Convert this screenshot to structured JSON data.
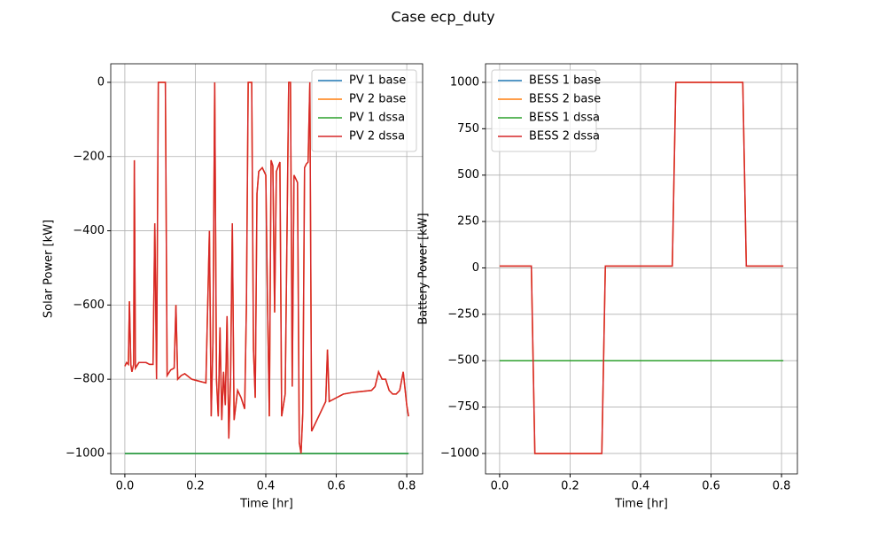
{
  "title": "Case ecp_duty",
  "chart_data": [
    {
      "type": "line",
      "legend": "upper right",
      "grid": true,
      "xlabel": "Time [hr]",
      "ylabel": "Solar Power [kW]",
      "xlim": [
        -0.04,
        0.845
      ],
      "ylim": [
        -1055,
        50
      ],
      "xticks": [
        {
          "value": 0,
          "label": "0.0"
        },
        {
          "value": 0.2,
          "label": "0.2"
        },
        {
          "value": 0.4,
          "label": "0.4"
        },
        {
          "value": 0.6,
          "label": "0.6"
        },
        {
          "value": 0.8,
          "label": "0.8"
        }
      ],
      "yticks": [
        {
          "value": -1000,
          "label": "−1000"
        },
        {
          "value": -800,
          "label": "−800"
        },
        {
          "value": -600,
          "label": "−600"
        },
        {
          "value": -400,
          "label": "−400"
        },
        {
          "value": -200,
          "label": "−200"
        },
        0
      ],
      "series": [
        {
          "name": "PV 1 base",
          "color": "#1f77b4",
          "x": [
            0,
            0.805
          ],
          "values": [
            -1000,
            -1000
          ]
        },
        {
          "name": "PV 2 base",
          "color": "#ff7f0e",
          "x": [
            0,
            0.005,
            0.01,
            0.013,
            0.017,
            0.02,
            0.025,
            0.027,
            0.03,
            0.04,
            0.06,
            0.07,
            0.08,
            0.085,
            0.09,
            0.095,
            0.115,
            0.12,
            0.13,
            0.14,
            0.145,
            0.15,
            0.16,
            0.17,
            0.19,
            0.21,
            0.23,
            0.24,
            0.245,
            0.25,
            0.255,
            0.26,
            0.265,
            0.27,
            0.275,
            0.28,
            0.285,
            0.29,
            0.295,
            0.3,
            0.305,
            0.31,
            0.32,
            0.33,
            0.34,
            0.345,
            0.35,
            0.36,
            0.365,
            0.37,
            0.375,
            0.38,
            0.39,
            0.4,
            0.405,
            0.41,
            0.415,
            0.42,
            0.425,
            0.43,
            0.44,
            0.445,
            0.455,
            0.465,
            0.47,
            0.475,
            0.48,
            0.49,
            0.495,
            0.5,
            0.505,
            0.51,
            0.515,
            0.52,
            0.525,
            0.53,
            0.54,
            0.55,
            0.56,
            0.57,
            0.575,
            0.58,
            0.6,
            0.62,
            0.65,
            0.7,
            0.71,
            0.72,
            0.73,
            0.74,
            0.75,
            0.76,
            0.77,
            0.78,
            0.79,
            0.8,
            0.805
          ],
          "values": [
            -765,
            -755,
            -760,
            -590,
            -760,
            -780,
            -760,
            -210,
            -770,
            -755,
            -755,
            -760,
            -760,
            -380,
            -800,
            0,
            0,
            -790,
            -775,
            -770,
            -600,
            -800,
            -790,
            -785,
            -800,
            -805,
            -810,
            -400,
            -900,
            -700,
            0,
            -800,
            -900,
            -660,
            -910,
            -780,
            -870,
            -630,
            -960,
            -800,
            -380,
            -910,
            -830,
            -850,
            -880,
            -600,
            0,
            0,
            -720,
            -850,
            -300,
            -240,
            -230,
            -250,
            -600,
            -900,
            -210,
            -225,
            -620,
            -240,
            -215,
            -900,
            -840,
            0,
            0,
            -820,
            -250,
            -270,
            -970,
            -1000,
            -890,
            -230,
            -220,
            -215,
            0,
            -940,
            -920,
            -900,
            -880,
            -860,
            -720,
            -860,
            -850,
            -840,
            -835,
            -830,
            -820,
            -780,
            -800,
            -800,
            -830,
            -840,
            -840,
            -830,
            -780,
            -870,
            -900
          ]
        },
        {
          "name": "PV 1 dssa",
          "color": "#2ca02c",
          "x": [
            0,
            0.805
          ],
          "values": [
            -1000,
            -1000
          ]
        },
        {
          "name": "PV 2 dssa",
          "color": "#d62728",
          "x": [
            0,
            0.005,
            0.01,
            0.013,
            0.017,
            0.02,
            0.025,
            0.027,
            0.03,
            0.04,
            0.06,
            0.07,
            0.08,
            0.085,
            0.09,
            0.095,
            0.115,
            0.12,
            0.13,
            0.14,
            0.145,
            0.15,
            0.16,
            0.17,
            0.19,
            0.21,
            0.23,
            0.24,
            0.245,
            0.25,
            0.255,
            0.26,
            0.265,
            0.27,
            0.275,
            0.28,
            0.285,
            0.29,
            0.295,
            0.3,
            0.305,
            0.31,
            0.32,
            0.33,
            0.34,
            0.345,
            0.35,
            0.36,
            0.365,
            0.37,
            0.375,
            0.38,
            0.39,
            0.4,
            0.405,
            0.41,
            0.415,
            0.42,
            0.425,
            0.43,
            0.44,
            0.445,
            0.455,
            0.465,
            0.47,
            0.475,
            0.48,
            0.49,
            0.495,
            0.5,
            0.505,
            0.51,
            0.515,
            0.52,
            0.525,
            0.53,
            0.54,
            0.55,
            0.56,
            0.57,
            0.575,
            0.58,
            0.6,
            0.62,
            0.65,
            0.7,
            0.71,
            0.72,
            0.73,
            0.74,
            0.75,
            0.76,
            0.77,
            0.78,
            0.79,
            0.8,
            0.805
          ],
          "values": [
            -765,
            -755,
            -760,
            -590,
            -760,
            -780,
            -760,
            -210,
            -770,
            -755,
            -755,
            -760,
            -760,
            -380,
            -800,
            0,
            0,
            -790,
            -775,
            -770,
            -600,
            -800,
            -790,
            -785,
            -800,
            -805,
            -810,
            -400,
            -900,
            -700,
            0,
            -800,
            -900,
            -660,
            -910,
            -780,
            -870,
            -630,
            -960,
            -800,
            -380,
            -910,
            -830,
            -850,
            -880,
            -600,
            0,
            0,
            -720,
            -850,
            -300,
            -240,
            -230,
            -250,
            -600,
            -900,
            -210,
            -225,
            -620,
            -240,
            -215,
            -900,
            -840,
            0,
            0,
            -820,
            -250,
            -270,
            -970,
            -1000,
            -890,
            -230,
            -220,
            -215,
            0,
            -940,
            -920,
            -900,
            -880,
            -860,
            -720,
            -860,
            -850,
            -840,
            -835,
            -830,
            -820,
            -780,
            -800,
            -800,
            -830,
            -840,
            -840,
            -830,
            -780,
            -870,
            -900
          ]
        }
      ]
    },
    {
      "type": "line",
      "legend": "upper left",
      "grid": true,
      "xlabel": "Time [hr]",
      "ylabel": "Battery Power [kW]",
      "xlim": [
        -0.04,
        0.845
      ],
      "ylim": [
        -1110,
        1100
      ],
      "xticks": [
        {
          "value": 0,
          "label": "0.0"
        },
        {
          "value": 0.2,
          "label": "0.2"
        },
        {
          "value": 0.4,
          "label": "0.4"
        },
        {
          "value": 0.6,
          "label": "0.6"
        },
        {
          "value": 0.8,
          "label": "0.8"
        }
      ],
      "yticks": [
        {
          "value": -1000,
          "label": "−1000"
        },
        {
          "value": -750,
          "label": "−750"
        },
        {
          "value": -500,
          "label": "−500"
        },
        {
          "value": -250,
          "label": "−250"
        },
        0,
        250,
        500,
        750,
        1000
      ],
      "series": [
        {
          "name": "BESS 1 base",
          "color": "#1f77b4",
          "x": [
            0,
            0.805
          ],
          "values": [
            -500,
            -500
          ]
        },
        {
          "name": "BESS 2 base",
          "color": "#ff7f0e",
          "x": [
            0,
            0.09,
            0.1,
            0.29,
            0.3,
            0.49,
            0.5,
            0.69,
            0.7,
            0.805
          ],
          "values": [
            10,
            10,
            -1000,
            -1000,
            10,
            10,
            1000,
            1000,
            10,
            10
          ]
        },
        {
          "name": "BESS 1 dssa",
          "color": "#2ca02c",
          "x": [
            0,
            0.805
          ],
          "values": [
            -500,
            -500
          ]
        },
        {
          "name": "BESS 2 dssa",
          "color": "#d62728",
          "x": [
            0,
            0.09,
            0.1,
            0.29,
            0.3,
            0.49,
            0.5,
            0.69,
            0.7,
            0.805
          ],
          "values": [
            10,
            10,
            -1000,
            -1000,
            10,
            10,
            1000,
            1000,
            10,
            10
          ]
        }
      ]
    }
  ]
}
